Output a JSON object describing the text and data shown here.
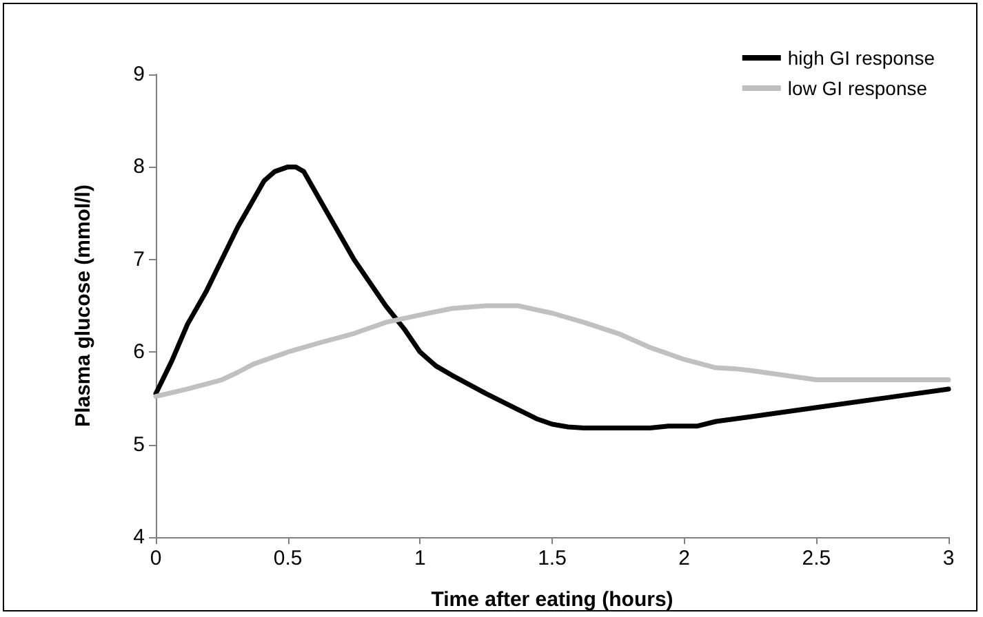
{
  "chart_data": {
    "type": "line",
    "xlabel": "Time after eating (hours)",
    "ylabel": "Plasma glucose (mmol/l)",
    "xlim": [
      0,
      3
    ],
    "xticks": [
      0,
      0.5,
      1,
      1.5,
      2,
      2.5,
      3
    ],
    "ylim": [
      4,
      9
    ],
    "yticks": [
      4,
      5,
      6,
      7,
      8,
      9
    ],
    "grid": false,
    "legend": "top right",
    "marker": "none",
    "line_style": "solid",
    "series": [
      {
        "name": "high GI response",
        "color": "#000000",
        "x": [
          0,
          0.06,
          0.12,
          0.19,
          0.25,
          0.31,
          0.37,
          0.41,
          0.45,
          0.5,
          0.53,
          0.56,
          0.62,
          0.69,
          0.75,
          0.87,
          0.94,
          1.0,
          1.06,
          1.12,
          1.25,
          1.37,
          1.44,
          1.5,
          1.56,
          1.62,
          1.75,
          1.87,
          1.94,
          2.0,
          2.05,
          2.12,
          2.25,
          2.5,
          2.75,
          3.0
        ],
        "values": [
          5.55,
          5.9,
          6.3,
          6.65,
          7.0,
          7.35,
          7.65,
          7.85,
          7.95,
          8.0,
          8.0,
          7.95,
          7.65,
          7.3,
          7.0,
          6.5,
          6.25,
          6.0,
          5.85,
          5.75,
          5.55,
          5.38,
          5.28,
          5.22,
          5.19,
          5.18,
          5.18,
          5.18,
          5.2,
          5.2,
          5.2,
          5.25,
          5.3,
          5.4,
          5.5,
          5.6
        ]
      },
      {
        "name": "low GI response",
        "color": "#c0c0c0",
        "x": [
          0,
          0.12,
          0.25,
          0.31,
          0.37,
          0.5,
          0.62,
          0.75,
          0.87,
          1.0,
          1.12,
          1.25,
          1.37,
          1.5,
          1.62,
          1.75,
          1.87,
          2.0,
          2.12,
          2.19,
          2.25,
          2.5,
          2.75,
          3.0
        ],
        "values": [
          5.52,
          5.6,
          5.7,
          5.78,
          5.87,
          6.0,
          6.1,
          6.2,
          6.32,
          6.4,
          6.47,
          6.5,
          6.5,
          6.42,
          6.32,
          6.2,
          6.05,
          5.92,
          5.83,
          5.82,
          5.8,
          5.7,
          5.7,
          5.7
        ]
      }
    ]
  }
}
